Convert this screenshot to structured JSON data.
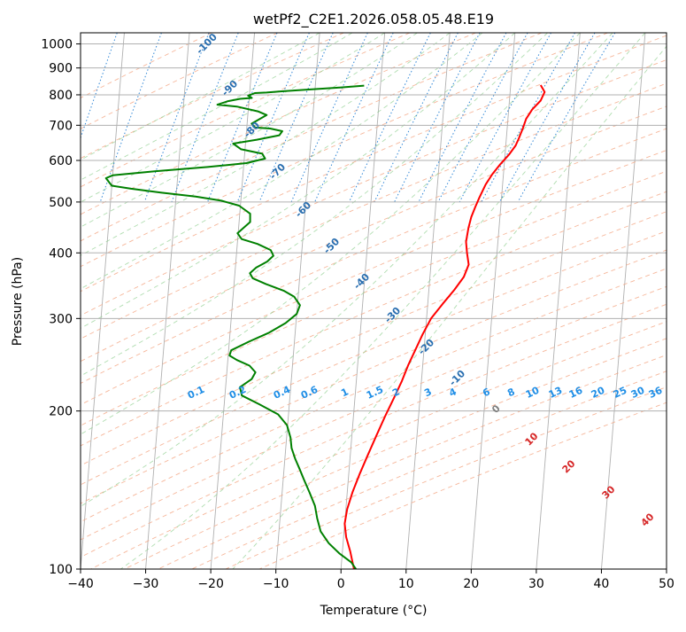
{
  "chart_data": {
    "type": "line",
    "title": "wetPf2_C2E1.2026.058.05.48.E19",
    "xlabel": "Temperature (°C)",
    "ylabel": "Pressure (hPa)",
    "xlim": [
      -40,
      50
    ],
    "ylim": [
      1050,
      100
    ],
    "y_scale": "log",
    "grid": true,
    "x_ticks": [
      -40,
      -30,
      -20,
      -10,
      0,
      10,
      20,
      30,
      40,
      50
    ],
    "x_tick_labels": [
      "−40",
      "−30",
      "−20",
      "−10",
      "0",
      "10",
      "20",
      "30",
      "40",
      "50"
    ],
    "y_ticks": [
      1000,
      900,
      800,
      700,
      600,
      500,
      400,
      300,
      200,
      100
    ],
    "y_tick_labels": [
      "1000",
      "900",
      "800",
      "700",
      "600",
      "500",
      "400",
      "300",
      "200",
      "100"
    ],
    "series": [
      {
        "color": "#ff0000",
        "points": [
          [
            24.6,
            835
          ],
          [
            25.3,
            810
          ],
          [
            24.8,
            780
          ],
          [
            23.6,
            750
          ],
          [
            22.8,
            720
          ],
          [
            22.4,
            690
          ],
          [
            21.9,
            660
          ],
          [
            21.5,
            640
          ],
          [
            20.6,
            615
          ],
          [
            19.4,
            590
          ],
          [
            18.3,
            565
          ],
          [
            17.4,
            540
          ],
          [
            16.6,
            510
          ],
          [
            16.1,
            490
          ],
          [
            15.6,
            468
          ],
          [
            15.3,
            446
          ],
          [
            15.1,
            420
          ],
          [
            15.4,
            400
          ],
          [
            15.8,
            380
          ],
          [
            15.2,
            360
          ],
          [
            13.9,
            340
          ],
          [
            12.3,
            320
          ],
          [
            10.7,
            300
          ],
          [
            9.6,
            280
          ],
          [
            8.7,
            262
          ],
          [
            7.8,
            245
          ],
          [
            7.0,
            228
          ],
          [
            6.0,
            212
          ],
          [
            4.9,
            196
          ],
          [
            3.8,
            180
          ],
          [
            2.7,
            165
          ],
          [
            1.7,
            152
          ],
          [
            0.8,
            140
          ],
          [
            0.2,
            130
          ],
          [
            0.0,
            122
          ],
          [
            0.4,
            115
          ],
          [
            1.2,
            108
          ],
          [
            2.0,
            100
          ]
        ]
      },
      {
        "color": "#008000",
        "points": [
          [
            -2.5,
            833
          ],
          [
            -6.2,
            826
          ],
          [
            -10.7,
            819
          ],
          [
            -15.3,
            812
          ],
          [
            -17.4,
            808
          ],
          [
            -19.2,
            806
          ],
          [
            -20.2,
            797
          ],
          [
            -19.6,
            789
          ],
          [
            -21.4,
            786
          ],
          [
            -23.2,
            778
          ],
          [
            -24.8,
            766
          ],
          [
            -21.8,
            760
          ],
          [
            -18.5,
            744
          ],
          [
            -17.1,
            732
          ],
          [
            -18.1,
            720
          ],
          [
            -19.3,
            705
          ],
          [
            -18.7,
            693
          ],
          [
            -16.4,
            690
          ],
          [
            -14.5,
            682
          ],
          [
            -14.9,
            670
          ],
          [
            -18.3,
            657
          ],
          [
            -21.9,
            646
          ],
          [
            -20.6,
            630
          ],
          [
            -17.3,
            618
          ],
          [
            -16.8,
            605
          ],
          [
            -19.6,
            593
          ],
          [
            -25.5,
            583
          ],
          [
            -33.6,
            572
          ],
          [
            -40.0,
            562
          ],
          [
            -41.0,
            555
          ],
          [
            -40.0,
            537
          ],
          [
            -37.0,
            530
          ],
          [
            -32.4,
            521
          ],
          [
            -27.0,
            512
          ],
          [
            -23.0,
            503
          ],
          [
            -20.2,
            492
          ],
          [
            -18.4,
            475
          ],
          [
            -18.3,
            458
          ],
          [
            -19.2,
            447
          ],
          [
            -20.1,
            436
          ],
          [
            -19.4,
            425
          ],
          [
            -16.9,
            416
          ],
          [
            -14.8,
            405
          ],
          [
            -14.3,
            395
          ],
          [
            -15.2,
            385
          ],
          [
            -16.8,
            375
          ],
          [
            -17.7,
            366
          ],
          [
            -17.2,
            358
          ],
          [
            -15.1,
            349
          ],
          [
            -12.3,
            339
          ],
          [
            -10.6,
            330
          ],
          [
            -9.6,
            318
          ],
          [
            -10.0,
            306
          ],
          [
            -11.6,
            294
          ],
          [
            -14.0,
            282
          ],
          [
            -17.0,
            271
          ],
          [
            -19.6,
            261
          ],
          [
            -19.8,
            255
          ],
          [
            -18.6,
            250
          ],
          [
            -16.6,
            244
          ],
          [
            -15.6,
            237
          ],
          [
            -16.1,
            230
          ],
          [
            -17.8,
            222
          ],
          [
            -17.4,
            214
          ],
          [
            -14.6,
            206
          ],
          [
            -11.6,
            197
          ],
          [
            -10.1,
            188
          ],
          [
            -9.4,
            178
          ],
          [
            -9.1,
            170
          ],
          [
            -8.4,
            162
          ],
          [
            -7.6,
            155
          ],
          [
            -6.8,
            148
          ],
          [
            -5.8,
            140
          ],
          [
            -4.8,
            132
          ],
          [
            -4.3,
            125
          ],
          [
            -3.6,
            118
          ],
          [
            -2.2,
            112
          ],
          [
            -0.4,
            107
          ],
          [
            1.5,
            103
          ],
          [
            2.3,
            100
          ]
        ]
      }
    ],
    "annotations": {
      "dry_adiabat_labels": [
        "-100",
        "-90",
        "-80",
        "-70",
        "-60",
        "-50",
        "-40",
        "-30",
        "-20",
        "-10",
        "0"
      ],
      "moist_adiabat_labels": [
        "10",
        "20",
        "30",
        "40"
      ],
      "mixing_ratio_labels": [
        "0.1",
        "0.2",
        "0.4",
        "0.6",
        "1",
        "1.5",
        "2",
        "3",
        "4",
        "6",
        "8",
        "10",
        "13",
        "16",
        "20",
        "25",
        "30",
        "36"
      ]
    }
  }
}
